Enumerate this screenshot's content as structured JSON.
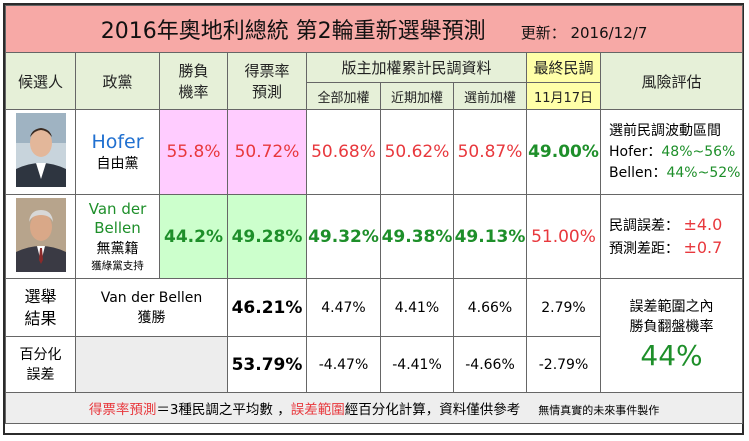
{
  "title": "2016年奧地利總統 第2輪重新選舉預測",
  "updated": "更新：  2016/12/7",
  "headers": {
    "candidate": "候選人",
    "party": "政黨",
    "win_prob_1": "勝負",
    "win_prob_2": "機率",
    "vote_pred_1": "得票率",
    "vote_pred_2": "預測",
    "poll_group": "版主加權累計民調資料",
    "all_weight": "全部加權",
    "recent_weight": "近期加權",
    "pre_election": "選前加權",
    "final_poll_1": "最終民調",
    "final_poll_2": "11月17日",
    "risk": "風險評估"
  },
  "candidates": [
    {
      "name": "Hofer",
      "party": "自由黨",
      "win_prob": "55.8%",
      "vote_pred": "50.72%",
      "all_weight": "50.68%",
      "recent_weight": "50.62%",
      "pre_election": "50.87%",
      "final_poll": "49.00%"
    },
    {
      "name_line1": "Van der",
      "name_line2": "Bellen",
      "party": "無黨籍",
      "party_note": "獲綠黨支持",
      "win_prob": "44.2%",
      "vote_pred": "49.28%",
      "all_weight": "49.32%",
      "recent_weight": "49.38%",
      "pre_election": "49.13%",
      "final_poll": "51.00%"
    }
  ],
  "risk1": {
    "title": "選前民調波動區間",
    "hofer_label": "Hofer：",
    "hofer_range": "48%~56%",
    "bellen_label": "Bellen：",
    "bellen_range": "44%~52%"
  },
  "risk2": {
    "poll_err_label": "民調誤差：",
    "poll_err": "±4.0",
    "pred_err_label": "預測差距：",
    "pred_err": "±0.7"
  },
  "result": {
    "label_1": "選舉",
    "label_2": "結果",
    "winner_1": "Van der Bellen",
    "winner_2": "獲勝",
    "vote": "46.21%",
    "d_all": "4.47%",
    "d_recent": "4.41%",
    "d_pre": "4.66%",
    "d_final": "2.79%"
  },
  "pct_error": {
    "label_1": "百分化",
    "label_2": "誤差",
    "vote": "53.79%",
    "d_all": "-4.47%",
    "d_recent": "-4.41%",
    "d_pre": "-4.66%",
    "d_final": "-2.79%"
  },
  "flip": {
    "line1": "誤差範圍之內",
    "line2": "勝負翻盤機率",
    "value": "44%"
  },
  "footer": {
    "t1": "得票率預測",
    "t2": "＝3種民調之平均數 ，",
    "t3": "誤差範圍",
    "t4": "經百分化計算，資料僅供參考",
    "note": "無情真實的未來事件製作"
  },
  "colors": {
    "title_bg": "#f7a9a6",
    "header_bg": "#e6f0d8",
    "highlight_yellow": "#ffffa8",
    "hofer_pink": "#ffccff",
    "bellen_green": "#ccffcc",
    "red_text": "#e8383d",
    "green_text": "#1e8f2a",
    "hofer_blue": "#2070d0"
  }
}
